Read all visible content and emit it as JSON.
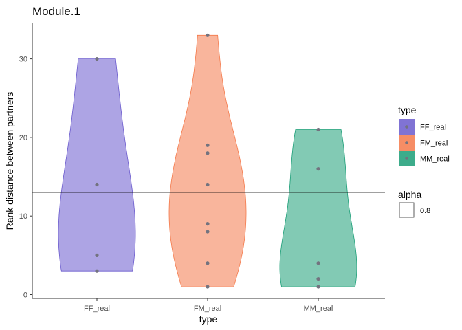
{
  "chart_data": {
    "type": "violin",
    "title": "Module.1",
    "xlabel": "type",
    "ylabel": "Rank distance between partners",
    "categories": [
      "FF_real",
      "FM_real",
      "MM_real"
    ],
    "ylim": [
      0,
      33
    ],
    "yticks": [
      0,
      10,
      20,
      30
    ],
    "hline": 13,
    "points": [
      [
        30,
        14,
        5,
        3
      ],
      [
        33,
        19,
        18,
        14,
        9,
        8,
        4,
        1
      ],
      [
        21,
        16,
        4,
        2,
        1
      ]
    ],
    "colors": [
      "#6a5acd",
      "#f4794a",
      "#1b9e77"
    ],
    "point_color": "#73737f",
    "legend_type": {
      "title": "type",
      "items": [
        "FF_real",
        "FM_real",
        "MM_real"
      ]
    },
    "legend_alpha": {
      "title": "alpha",
      "items": [
        "0.8"
      ]
    }
  }
}
